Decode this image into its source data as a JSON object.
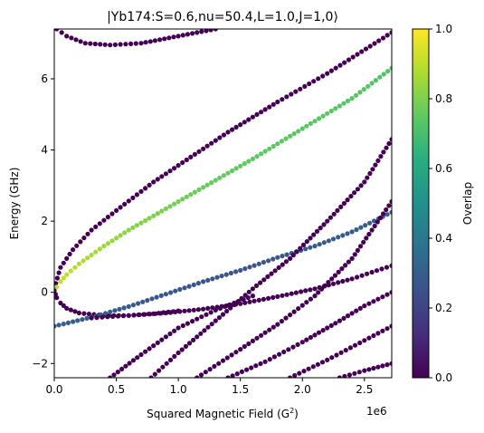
{
  "chart_data": {
    "type": "scatter",
    "title": "|Yb174:S=0.6,nu=50.4,L=1.0,J=1,0⟩",
    "xlabel_main": "Squared Magnetic Field (G",
    "xlabel_sup": "2",
    "xlabel_close": ")",
    "ylabel": "Energy (GHz)",
    "x_offset_label": "1e6",
    "xlim": [
      0,
      2.72
    ],
    "ylim": [
      -2.4,
      7.4
    ],
    "x_ticks": [
      0.0,
      0.5,
      1.0,
      1.5,
      2.0,
      2.5
    ],
    "x_tick_labels": [
      "0.0",
      "0.5",
      "1.0",
      "1.5",
      "2.0",
      "2.5"
    ],
    "y_ticks": [
      -2,
      0,
      2,
      4,
      6
    ],
    "y_tick_labels": [
      "−2",
      "0",
      "2",
      "4",
      "6"
    ],
    "colorbar": {
      "label": "Overlap",
      "range": [
        0.0,
        1.0
      ],
      "ticks": [
        0.0,
        0.2,
        0.4,
        0.6,
        0.8,
        1.0
      ],
      "tick_labels": [
        "0.0",
        "0.2",
        "0.4",
        "0.6",
        "0.8",
        "1.0"
      ],
      "colormap": "viridis"
    },
    "series": [
      {
        "x": [
          0.0,
          0.05,
          0.15,
          0.3,
          0.5,
          0.8,
          1.1,
          1.4,
          1.8,
          2.2,
          2.72
        ],
        "y": [
          0.1,
          0.7,
          1.2,
          1.75,
          2.3,
          3.1,
          3.8,
          4.5,
          5.35,
          6.15,
          7.3
        ],
        "overlap": [
          0.0,
          0.0,
          0.0,
          0.0,
          0.0,
          0.0,
          0.0,
          0.0,
          0.0,
          0.0,
          0.0
        ]
      },
      {
        "x": [
          0.0,
          0.02,
          0.05,
          0.1,
          0.2,
          0.4,
          0.6,
          0.8,
          1.0,
          1.3,
          1.6,
          2.0,
          2.4,
          2.72
        ],
        "y": [
          0.05,
          0.15,
          0.3,
          0.5,
          0.8,
          1.3,
          1.75,
          2.15,
          2.55,
          3.15,
          3.75,
          4.6,
          5.45,
          6.3
        ],
        "overlap": [
          0.88,
          0.9,
          0.91,
          0.9,
          0.88,
          0.85,
          0.82,
          0.8,
          0.78,
          0.76,
          0.75,
          0.74,
          0.73,
          0.72
        ]
      },
      {
        "x": [
          0.0,
          0.02,
          0.05,
          0.1,
          0.2,
          0.4,
          0.6,
          0.8,
          1.0
        ],
        "y": [
          0.05,
          -0.15,
          -0.3,
          -0.45,
          -0.58,
          -0.65,
          -0.65,
          -0.6,
          -0.52
        ],
        "overlap": [
          0.0,
          0.0,
          0.0,
          0.0,
          0.0,
          0.0,
          0.0,
          0.0,
          0.0
        ]
      },
      {
        "x": [
          0.0,
          0.3,
          0.6,
          0.9,
          1.2,
          1.5,
          1.8,
          2.1,
          2.4,
          2.72
        ],
        "y": [
          -0.95,
          -0.7,
          -0.4,
          -0.05,
          0.3,
          0.62,
          0.98,
          1.3,
          1.7,
          2.25
        ],
        "overlap": [
          0.3,
          0.29,
          0.28,
          0.27,
          0.26,
          0.26,
          0.27,
          0.28,
          0.29,
          0.3
        ]
      },
      {
        "x": [
          0.3,
          0.6,
          0.9,
          1.2,
          1.5,
          1.8,
          2.1,
          2.4,
          2.72
        ],
        "y": [
          -0.72,
          -0.65,
          -0.58,
          -0.47,
          -0.32,
          -0.12,
          0.1,
          0.38,
          0.75
        ],
        "overlap": [
          0.0,
          0.0,
          0.0,
          0.0,
          0.0,
          0.0,
          0.0,
          0.0,
          0.0
        ]
      },
      {
        "x": [
          0.78,
          1.0,
          1.3,
          1.6,
          1.9,
          2.2,
          2.5,
          2.72
        ],
        "y": [
          -2.4,
          -1.7,
          -0.8,
          0.1,
          0.95,
          2.0,
          3.1,
          4.3
        ],
        "overlap": [
          0.0,
          0.0,
          0.0,
          0.0,
          0.0,
          0.0,
          0.0,
          0.0
        ]
      },
      {
        "x": [
          0.02,
          0.1,
          0.25,
          0.45,
          0.7,
          1.0,
          1.3
        ],
        "y": [
          7.4,
          7.2,
          7.0,
          6.95,
          7.0,
          7.2,
          7.4
        ],
        "overlap": [
          0.0,
          0.0,
          0.0,
          0.0,
          0.0,
          0.0,
          0.0
        ]
      },
      {
        "x": [
          0.45,
          0.7,
          1.0,
          1.3,
          1.6
        ],
        "y": [
          -2.4,
          -1.75,
          -1.0,
          -0.5,
          -0.1
        ],
        "overlap": [
          0.0,
          0.0,
          0.0,
          0.0,
          0.0
        ]
      },
      {
        "x": [
          1.15,
          1.5,
          1.8,
          2.1,
          2.4,
          2.72
        ],
        "y": [
          -2.4,
          -1.6,
          -0.9,
          -0.1,
          0.95,
          2.55
        ],
        "overlap": [
          0.0,
          0.0,
          0.0,
          0.0,
          0.0,
          0.0
        ]
      },
      {
        "x": [
          1.4,
          1.7,
          2.0,
          2.3,
          2.5,
          2.72
        ],
        "y": [
          -2.4,
          -1.95,
          -1.4,
          -0.8,
          -0.38,
          0.0
        ],
        "overlap": [
          0.0,
          0.0,
          0.0,
          0.0,
          0.0,
          0.0
        ]
      },
      {
        "x": [
          1.9,
          2.2,
          2.5,
          2.72
        ],
        "y": [
          -2.4,
          -1.9,
          -1.35,
          -0.95
        ],
        "overlap": [
          0.0,
          0.0,
          0.0,
          0.0
        ]
      },
      {
        "x": [
          2.3,
          2.5,
          2.72
        ],
        "y": [
          -2.4,
          -2.2,
          -2.0
        ],
        "overlap": [
          0.0,
          0.0,
          0.0
        ]
      }
    ]
  }
}
